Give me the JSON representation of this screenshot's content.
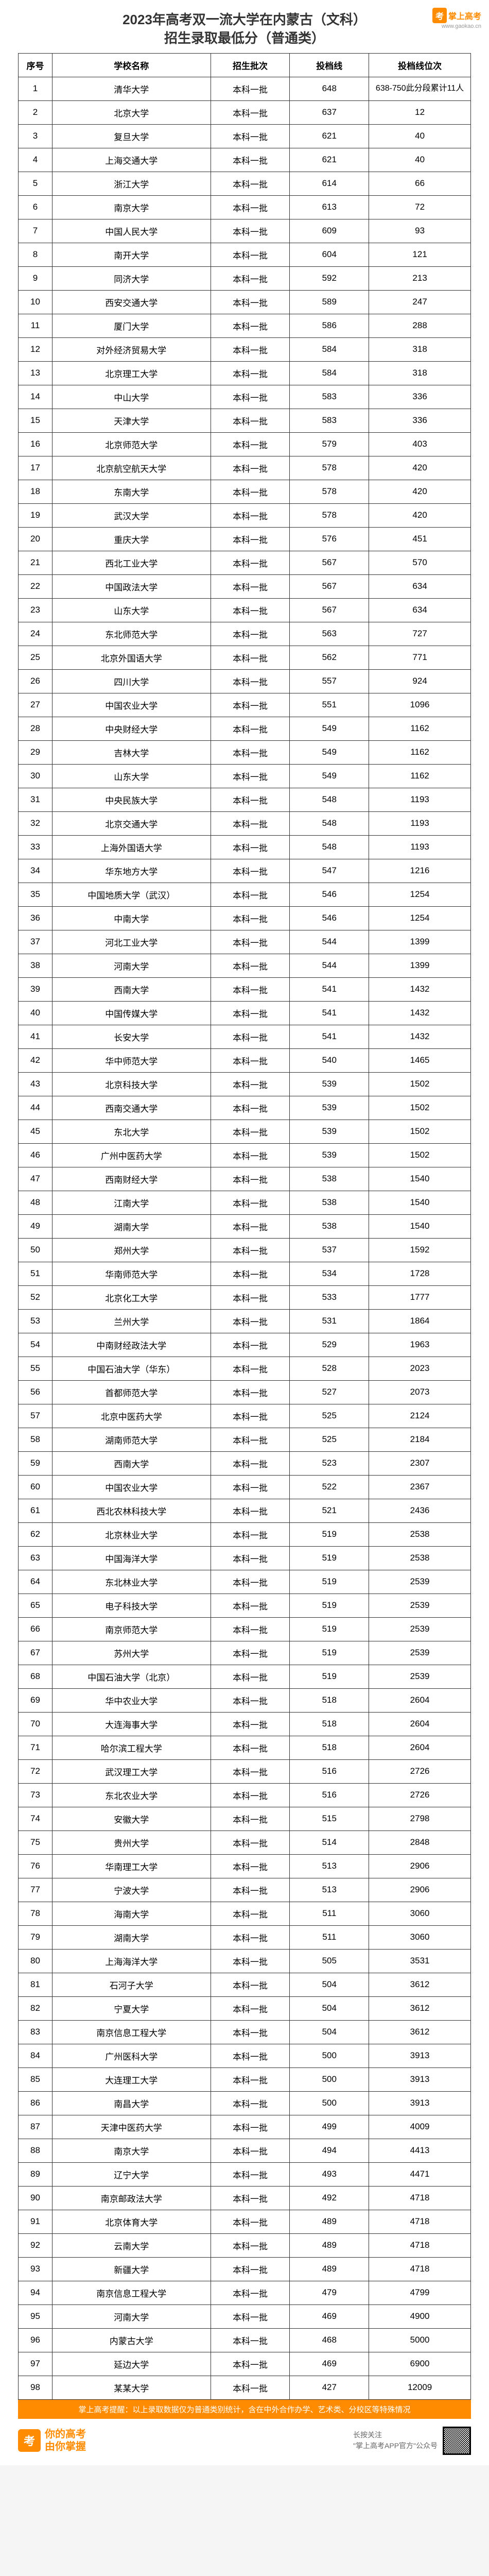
{
  "header": {
    "title_line1": "2023年高考双一流大学在内蒙古（文科）",
    "title_line2": "招生录取最低分（普通类）",
    "logo_brand": "掌上高考",
    "logo_url": "www.gaokao.cn"
  },
  "table": {
    "headers": [
      "序号",
      "学校名称",
      "招生批次",
      "投档线",
      "投档线位次"
    ],
    "rows": [
      [
        "1",
        "清华大学",
        "本科一批",
        "648",
        "638-750此分段累计11人"
      ],
      [
        "2",
        "北京大学",
        "本科一批",
        "637",
        "12"
      ],
      [
        "3",
        "复旦大学",
        "本科一批",
        "621",
        "40"
      ],
      [
        "4",
        "上海交通大学",
        "本科一批",
        "621",
        "40"
      ],
      [
        "5",
        "浙江大学",
        "本科一批",
        "614",
        "66"
      ],
      [
        "6",
        "南京大学",
        "本科一批",
        "613",
        "72"
      ],
      [
        "7",
        "中国人民大学",
        "本科一批",
        "609",
        "93"
      ],
      [
        "8",
        "南开大学",
        "本科一批",
        "604",
        "121"
      ],
      [
        "9",
        "同济大学",
        "本科一批",
        "592",
        "213"
      ],
      [
        "10",
        "西安交通大学",
        "本科一批",
        "589",
        "247"
      ],
      [
        "11",
        "厦门大学",
        "本科一批",
        "586",
        "288"
      ],
      [
        "12",
        "对外经济贸易大学",
        "本科一批",
        "584",
        "318"
      ],
      [
        "13",
        "北京理工大学",
        "本科一批",
        "584",
        "318"
      ],
      [
        "14",
        "中山大学",
        "本科一批",
        "583",
        "336"
      ],
      [
        "15",
        "天津大学",
        "本科一批",
        "583",
        "336"
      ],
      [
        "16",
        "北京师范大学",
        "本科一批",
        "579",
        "403"
      ],
      [
        "17",
        "北京航空航天大学",
        "本科一批",
        "578",
        "420"
      ],
      [
        "18",
        "东南大学",
        "本科一批",
        "578",
        "420"
      ],
      [
        "19",
        "武汉大学",
        "本科一批",
        "578",
        "420"
      ],
      [
        "20",
        "重庆大学",
        "本科一批",
        "576",
        "451"
      ],
      [
        "21",
        "西北工业大学",
        "本科一批",
        "567",
        "570"
      ],
      [
        "22",
        "中国政法大学",
        "本科一批",
        "567",
        "634"
      ],
      [
        "23",
        "山东大学",
        "本科一批",
        "567",
        "634"
      ],
      [
        "24",
        "东北师范大学",
        "本科一批",
        "563",
        "727"
      ],
      [
        "25",
        "北京外国语大学",
        "本科一批",
        "562",
        "771"
      ],
      [
        "26",
        "四川大学",
        "本科一批",
        "557",
        "924"
      ],
      [
        "27",
        "中国农业大学",
        "本科一批",
        "551",
        "1096"
      ],
      [
        "28",
        "中央财经大学",
        "本科一批",
        "549",
        "1162"
      ],
      [
        "29",
        "吉林大学",
        "本科一批",
        "549",
        "1162"
      ],
      [
        "30",
        "山东大学",
        "本科一批",
        "549",
        "1162"
      ],
      [
        "31",
        "中央民族大学",
        "本科一批",
        "548",
        "1193"
      ],
      [
        "32",
        "北京交通大学",
        "本科一批",
        "548",
        "1193"
      ],
      [
        "33",
        "上海外国语大学",
        "本科一批",
        "548",
        "1193"
      ],
      [
        "34",
        "华东地方大学",
        "本科一批",
        "547",
        "1216"
      ],
      [
        "35",
        "中国地质大学（武汉）",
        "本科一批",
        "546",
        "1254"
      ],
      [
        "36",
        "中南大学",
        "本科一批",
        "546",
        "1254"
      ],
      [
        "37",
        "河北工业大学",
        "本科一批",
        "544",
        "1399"
      ],
      [
        "38",
        "河南大学",
        "本科一批",
        "544",
        "1399"
      ],
      [
        "39",
        "西南大学",
        "本科一批",
        "541",
        "1432"
      ],
      [
        "40",
        "中国传媒大学",
        "本科一批",
        "541",
        "1432"
      ],
      [
        "41",
        "长安大学",
        "本科一批",
        "541",
        "1432"
      ],
      [
        "42",
        "华中师范大学",
        "本科一批",
        "540",
        "1465"
      ],
      [
        "43",
        "北京科技大学",
        "本科一批",
        "539",
        "1502"
      ],
      [
        "44",
        "西南交通大学",
        "本科一批",
        "539",
        "1502"
      ],
      [
        "45",
        "东北大学",
        "本科一批",
        "539",
        "1502"
      ],
      [
        "46",
        "广州中医药大学",
        "本科一批",
        "539",
        "1502"
      ],
      [
        "47",
        "西南财经大学",
        "本科一批",
        "538",
        "1540"
      ],
      [
        "48",
        "江南大学",
        "本科一批",
        "538",
        "1540"
      ],
      [
        "49",
        "湖南大学",
        "本科一批",
        "538",
        "1540"
      ],
      [
        "50",
        "郑州大学",
        "本科一批",
        "537",
        "1592"
      ],
      [
        "51",
        "华南师范大学",
        "本科一批",
        "534",
        "1728"
      ],
      [
        "52",
        "北京化工大学",
        "本科一批",
        "533",
        "1777"
      ],
      [
        "53",
        "兰州大学",
        "本科一批",
        "531",
        "1864"
      ],
      [
        "54",
        "中南财经政法大学",
        "本科一批",
        "529",
        "1963"
      ],
      [
        "55",
        "中国石油大学（华东）",
        "本科一批",
        "528",
        "2023"
      ],
      [
        "56",
        "首都师范大学",
        "本科一批",
        "527",
        "2073"
      ],
      [
        "57",
        "北京中医药大学",
        "本科一批",
        "525",
        "2124"
      ],
      [
        "58",
        "湖南师范大学",
        "本科一批",
        "525",
        "2184"
      ],
      [
        "59",
        "西南大学",
        "本科一批",
        "523",
        "2307"
      ],
      [
        "60",
        "中国农业大学",
        "本科一批",
        "522",
        "2367"
      ],
      [
        "61",
        "西北农林科技大学",
        "本科一批",
        "521",
        "2436"
      ],
      [
        "62",
        "北京林业大学",
        "本科一批",
        "519",
        "2538"
      ],
      [
        "63",
        "中国海洋大学",
        "本科一批",
        "519",
        "2538"
      ],
      [
        "64",
        "东北林业大学",
        "本科一批",
        "519",
        "2539"
      ],
      [
        "65",
        "电子科技大学",
        "本科一批",
        "519",
        "2539"
      ],
      [
        "66",
        "南京师范大学",
        "本科一批",
        "519",
        "2539"
      ],
      [
        "67",
        "苏州大学",
        "本科一批",
        "519",
        "2539"
      ],
      [
        "68",
        "中国石油大学（北京）",
        "本科一批",
        "519",
        "2539"
      ],
      [
        "69",
        "华中农业大学",
        "本科一批",
        "518",
        "2604"
      ],
      [
        "70",
        "大连海事大学",
        "本科一批",
        "518",
        "2604"
      ],
      [
        "71",
        "哈尔滨工程大学",
        "本科一批",
        "518",
        "2604"
      ],
      [
        "72",
        "武汉理工大学",
        "本科一批",
        "516",
        "2726"
      ],
      [
        "73",
        "东北农业大学",
        "本科一批",
        "516",
        "2726"
      ],
      [
        "74",
        "安徽大学",
        "本科一批",
        "515",
        "2798"
      ],
      [
        "75",
        "贵州大学",
        "本科一批",
        "514",
        "2848"
      ],
      [
        "76",
        "华南理工大学",
        "本科一批",
        "513",
        "2906"
      ],
      [
        "77",
        "宁波大学",
        "本科一批",
        "513",
        "2906"
      ],
      [
        "78",
        "海南大学",
        "本科一批",
        "511",
        "3060"
      ],
      [
        "79",
        "湖南大学",
        "本科一批",
        "511",
        "3060"
      ],
      [
        "80",
        "上海海洋大学",
        "本科一批",
        "505",
        "3531"
      ],
      [
        "81",
        "石河子大学",
        "本科一批",
        "504",
        "3612"
      ],
      [
        "82",
        "宁夏大学",
        "本科一批",
        "504",
        "3612"
      ],
      [
        "83",
        "南京信息工程大学",
        "本科一批",
        "504",
        "3612"
      ],
      [
        "84",
        "广州医科大学",
        "本科一批",
        "500",
        "3913"
      ],
      [
        "85",
        "大连理工大学",
        "本科一批",
        "500",
        "3913"
      ],
      [
        "86",
        "南昌大学",
        "本科一批",
        "500",
        "3913"
      ],
      [
        "87",
        "天津中医药大学",
        "本科一批",
        "499",
        "4009"
      ],
      [
        "88",
        "南京大学",
        "本科一批",
        "494",
        "4413"
      ],
      [
        "89",
        "辽宁大学",
        "本科一批",
        "493",
        "4471"
      ],
      [
        "90",
        "南京邮政法大学",
        "本科一批",
        "492",
        "4718"
      ],
      [
        "91",
        "北京体育大学",
        "本科一批",
        "489",
        "4718"
      ],
      [
        "92",
        "云南大学",
        "本科一批",
        "489",
        "4718"
      ],
      [
        "93",
        "新疆大学",
        "本科一批",
        "489",
        "4718"
      ],
      [
        "94",
        "南京信息工程大学",
        "本科一批",
        "479",
        "4799"
      ],
      [
        "95",
        "河南大学",
        "本科一批",
        "469",
        "4900"
      ],
      [
        "96",
        "内蒙古大学",
        "本科一批",
        "468",
        "5000"
      ],
      [
        "97",
        "延边大学",
        "本科一批",
        "469",
        "6900"
      ],
      [
        "98",
        "某某大学",
        "本科一批",
        "427",
        "12009"
      ]
    ]
  },
  "footer": {
    "note": "掌上高考提醒：以上录取数据仅为普通类别统计，含在中外合作办学、艺术类、分校区等特殊情况",
    "slogan_line1": "你的高考",
    "slogan_line2": "由你掌握",
    "right_line1": "长按关注",
    "right_line2": "\"掌上高考APP官方\"公众号"
  },
  "watermark": "掌上高考 gaokao.cn"
}
